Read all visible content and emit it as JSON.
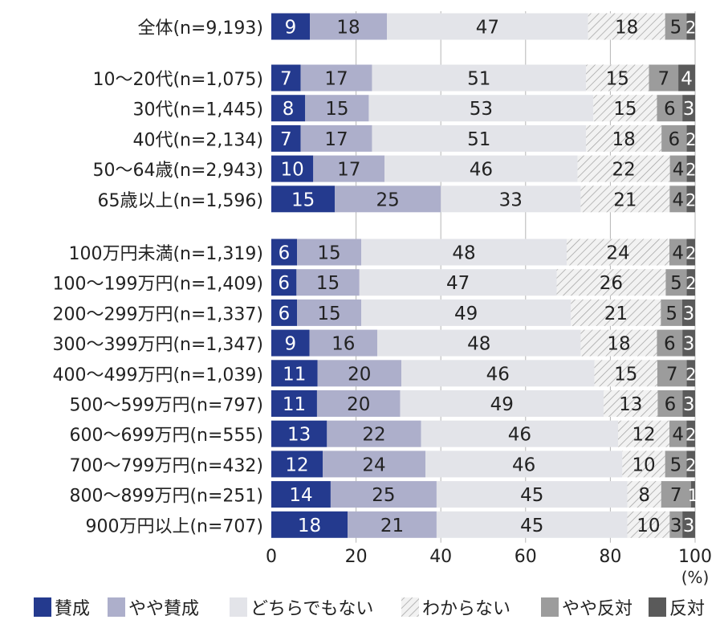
{
  "chart_data": {
    "type": "bar",
    "orientation": "horizontal",
    "stacked": true,
    "unit_label": "(%)",
    "xlim": [
      0,
      100
    ],
    "xticks": [
      0,
      20,
      40,
      60,
      80,
      100
    ],
    "grid": true,
    "legend_placement": "bottom",
    "series": [
      {
        "name": "賛成",
        "color": "#243a8e"
      },
      {
        "name": "やや賛成",
        "color": "#adafcb"
      },
      {
        "name": "どちらでもない",
        "color": "#e3e4e9"
      },
      {
        "name": "わからない",
        "color": "#f2f2f2",
        "pattern": "diagonal-hatch"
      },
      {
        "name": "やや反対",
        "color": "#9c9c9c"
      },
      {
        "name": "反対",
        "color": "#5a5a5a"
      }
    ],
    "groups": [
      {
        "rows": [
          {
            "label": "全体(n=9,193)",
            "values": [
              9,
              18,
              47,
              18,
              5,
              2
            ]
          }
        ]
      },
      {
        "rows": [
          {
            "label": "10〜20代(n=1,075)",
            "values": [
              7,
              17,
              51,
              15,
              7,
              4
            ]
          },
          {
            "label": "30代(n=1,445)",
            "values": [
              8,
              15,
              53,
              15,
              6,
              3
            ]
          },
          {
            "label": "40代(n=2,134)",
            "values": [
              7,
              17,
              51,
              18,
              6,
              2
            ]
          },
          {
            "label": "50〜64歳(n=2,943)",
            "values": [
              10,
              17,
              46,
              22,
              4,
              2
            ]
          },
          {
            "label": "65歳以上(n=1,596)",
            "values": [
              15,
              25,
              33,
              21,
              4,
              2
            ]
          }
        ]
      },
      {
        "rows": [
          {
            "label": "100万円未満(n=1,319)",
            "values": [
              6,
              15,
              48,
              24,
              4,
              2
            ]
          },
          {
            "label": "100〜199万円(n=1,409)",
            "values": [
              6,
              15,
              47,
              26,
              5,
              2
            ]
          },
          {
            "label": "200〜299万円(n=1,337)",
            "values": [
              6,
              15,
              49,
              21,
              5,
              3
            ]
          },
          {
            "label": "300〜399万円(n=1,347)",
            "values": [
              9,
              16,
              48,
              18,
              6,
              3
            ]
          },
          {
            "label": "400〜499万円(n=1,039)",
            "values": [
              11,
              20,
              46,
              15,
              7,
              2
            ]
          },
          {
            "label": "500〜599万円(n=797)",
            "values": [
              11,
              20,
              49,
              13,
              6,
              3
            ]
          },
          {
            "label": "600〜699万円(n=555)",
            "values": [
              13,
              22,
              46,
              12,
              4,
              2
            ]
          },
          {
            "label": "700〜799万円(n=432)",
            "values": [
              12,
              24,
              46,
              10,
              5,
              2
            ]
          },
          {
            "label": "800〜899万円(n=251)",
            "values": [
              14,
              25,
              45,
              8,
              7,
              1
            ]
          },
          {
            "label": "900万円以上(n=707)",
            "values": [
              18,
              21,
              45,
              10,
              3,
              3
            ]
          }
        ]
      }
    ]
  }
}
